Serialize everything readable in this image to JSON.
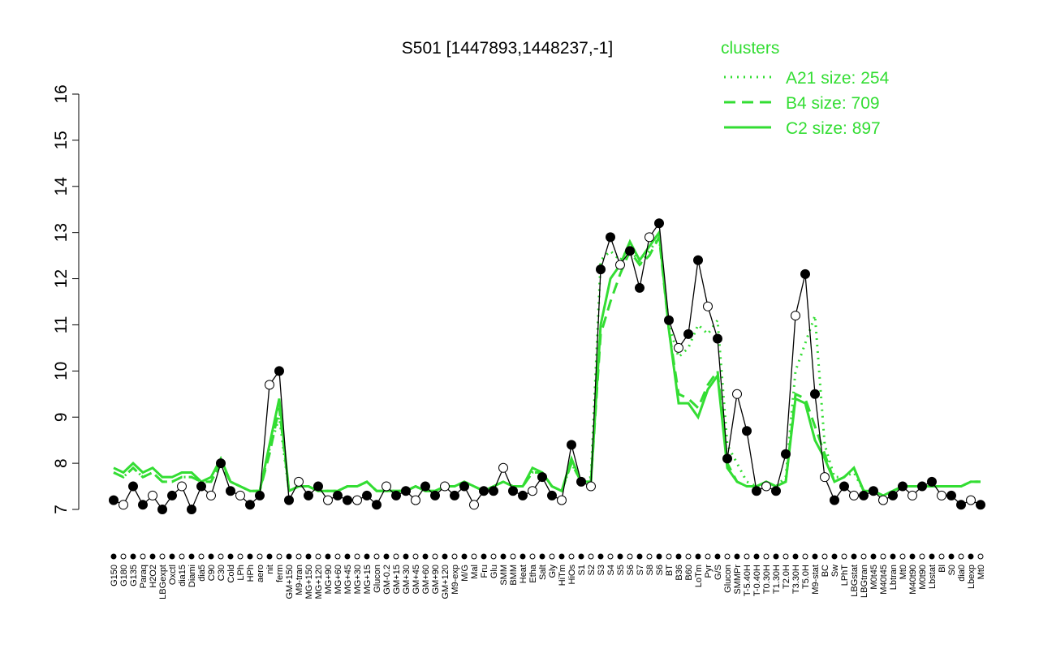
{
  "chart_data": {
    "type": "line",
    "title": "S501 [1447893,1448237,-1]",
    "categories": [
      "G150",
      "G180",
      "G135",
      "Paraq",
      "H2O2",
      "LBGexpt",
      "Oxctl",
      "dia15",
      "Diami",
      "dia5",
      "C90",
      "C30",
      "Cold",
      "LPh",
      "HPh",
      "aero",
      "nit",
      "ferm",
      "GM+150",
      "M9-tran",
      "MG+150",
      "MG+120",
      "MG+90",
      "MG+60",
      "MG+45",
      "MG+30",
      "MG+15",
      "Glucon",
      "GM-0.2",
      "GM+15",
      "GM+30",
      "GM+45",
      "GM+60",
      "GM+90",
      "GM+120",
      "M9-exp",
      "M/G",
      "Mal",
      "Fru",
      "Glu",
      "SMM",
      "BMM",
      "Heat",
      "Etha",
      "Salt",
      "Gly",
      "HiTm",
      "HiOs",
      "S1",
      "S2",
      "S3",
      "S4",
      "S5",
      "S6",
      "S7",
      "S8",
      "S6",
      "BT",
      "B36",
      "B60",
      "LoTm",
      "Pyr",
      "G/S",
      "Glucon",
      "SMMPr",
      "T-5.40H",
      "T-0.40H",
      "T0.30H",
      "T1.30H",
      "T2.0H",
      "T3.30H",
      "T5.0H",
      "M9-stat",
      "BC",
      "Sw",
      "LPhT",
      "LBGstat",
      "LBGtran",
      "M0t45",
      "M40t45",
      "Lbtran",
      "Mt0",
      "M40t90",
      "M0t90",
      "Lbstat",
      "Bl",
      "S0",
      "dia0",
      "Lbexp",
      "Mt0"
    ],
    "values": [
      7.2,
      7.1,
      7.5,
      7.1,
      7.3,
      7.0,
      7.3,
      7.5,
      7.0,
      7.5,
      7.3,
      8.0,
      7.4,
      7.3,
      7.1,
      7.3,
      9.7,
      10.0,
      7.2,
      7.6,
      7.3,
      7.5,
      7.2,
      7.3,
      7.2,
      7.2,
      7.3,
      7.1,
      7.5,
      7.3,
      7.4,
      7.2,
      7.5,
      7.3,
      7.5,
      7.3,
      7.5,
      7.1,
      7.4,
      7.4,
      7.9,
      7.4,
      7.3,
      7.4,
      7.7,
      7.3,
      7.2,
      8.4,
      7.6,
      7.5,
      12.2,
      12.9,
      12.3,
      12.6,
      11.8,
      12.9,
      13.2,
      11.1,
      10.5,
      10.8,
      12.4,
      11.4,
      10.7,
      8.1,
      9.5,
      8.7,
      7.4,
      7.5,
      7.4,
      8.2,
      11.2,
      12.1,
      9.5,
      7.7,
      7.2,
      7.5,
      7.3,
      7.3,
      7.4,
      7.2,
      7.3,
      7.5,
      7.3,
      7.5,
      7.6,
      7.3,
      7.3,
      7.1,
      7.2,
      7.1
    ],
    "color": "#000000",
    "legend_title": "clusters",
    "series": [
      {
        "name": "A21 size: 254",
        "color": "#33dd33",
        "style": "dotted",
        "values": [
          7.8,
          7.7,
          7.9,
          7.7,
          7.8,
          7.6,
          7.6,
          7.7,
          7.7,
          7.6,
          7.6,
          8.0,
          7.6,
          7.5,
          7.4,
          7.4,
          8.3,
          9.0,
          7.4,
          7.5,
          7.5,
          7.4,
          7.4,
          7.4,
          7.5,
          7.5,
          7.6,
          7.4,
          7.4,
          7.4,
          7.4,
          7.5,
          7.4,
          7.4,
          7.5,
          7.5,
          7.6,
          7.5,
          7.4,
          7.5,
          7.6,
          7.5,
          7.5,
          7.8,
          7.8,
          7.5,
          7.4,
          8.0,
          7.6,
          7.7,
          12.4,
          12.6,
          12.4,
          12.7,
          12.3,
          12.6,
          12.9,
          11.0,
          10.3,
          10.5,
          11.0,
          10.8,
          11.1,
          8.4,
          8.0,
          7.6,
          7.5,
          7.6,
          7.5,
          7.7,
          10.0,
          10.6,
          11.2,
          8.4,
          7.7,
          7.7,
          7.8,
          7.4,
          7.4,
          7.3,
          7.4,
          7.5,
          7.5,
          7.5,
          7.5,
          7.5,
          7.5,
          7.5,
          7.6,
          7.6
        ]
      },
      {
        "name": "B4 size: 709",
        "color": "#33dd33",
        "style": "dashed",
        "values": [
          7.8,
          7.7,
          7.9,
          7.7,
          7.8,
          7.6,
          7.6,
          7.7,
          7.7,
          7.6,
          7.6,
          8.0,
          7.6,
          7.5,
          7.4,
          7.4,
          8.2,
          9.2,
          7.4,
          7.5,
          7.5,
          7.4,
          7.4,
          7.4,
          7.5,
          7.5,
          7.6,
          7.4,
          7.4,
          7.4,
          7.4,
          7.5,
          7.4,
          7.4,
          7.5,
          7.5,
          7.6,
          7.5,
          7.4,
          7.5,
          7.6,
          7.5,
          7.5,
          7.8,
          7.8,
          7.5,
          7.4,
          8.0,
          7.6,
          7.6,
          10.8,
          11.5,
          12.1,
          12.6,
          12.3,
          12.5,
          12.9,
          10.9,
          9.5,
          9.4,
          9.2,
          9.7,
          10.0,
          8.0,
          7.6,
          7.5,
          7.5,
          7.6,
          7.5,
          7.6,
          9.5,
          9.4,
          8.8,
          8.2,
          7.6,
          7.7,
          7.9,
          7.4,
          7.4,
          7.3,
          7.4,
          7.5,
          7.5,
          7.5,
          7.5,
          7.5,
          7.5,
          7.5,
          7.6,
          7.6
        ]
      },
      {
        "name": "C2 size: 897",
        "color": "#33dd33",
        "style": "solid",
        "values": [
          7.9,
          7.8,
          8.0,
          7.8,
          7.9,
          7.7,
          7.7,
          7.8,
          7.8,
          7.6,
          7.7,
          8.1,
          7.6,
          7.5,
          7.4,
          7.4,
          8.4,
          9.4,
          7.4,
          7.5,
          7.5,
          7.4,
          7.4,
          7.4,
          7.5,
          7.5,
          7.6,
          7.4,
          7.4,
          7.4,
          7.4,
          7.5,
          7.4,
          7.4,
          7.5,
          7.5,
          7.6,
          7.5,
          7.4,
          7.5,
          7.6,
          7.5,
          7.5,
          7.9,
          7.8,
          7.5,
          7.4,
          8.1,
          7.6,
          7.6,
          11.0,
          12.0,
          12.3,
          12.8,
          12.4,
          12.7,
          13.0,
          10.9,
          9.3,
          9.3,
          9.0,
          9.6,
          9.9,
          7.9,
          7.6,
          7.5,
          7.5,
          7.6,
          7.5,
          7.6,
          9.4,
          9.3,
          8.5,
          8.1,
          7.6,
          7.7,
          7.9,
          7.4,
          7.4,
          7.3,
          7.4,
          7.5,
          7.5,
          7.5,
          7.5,
          7.5,
          7.5,
          7.5,
          7.6,
          7.6
        ]
      }
    ],
    "ylim": [
      7,
      16
    ],
    "yticks": [
      7,
      8,
      9,
      10,
      11,
      12,
      13,
      14,
      15,
      16
    ]
  }
}
